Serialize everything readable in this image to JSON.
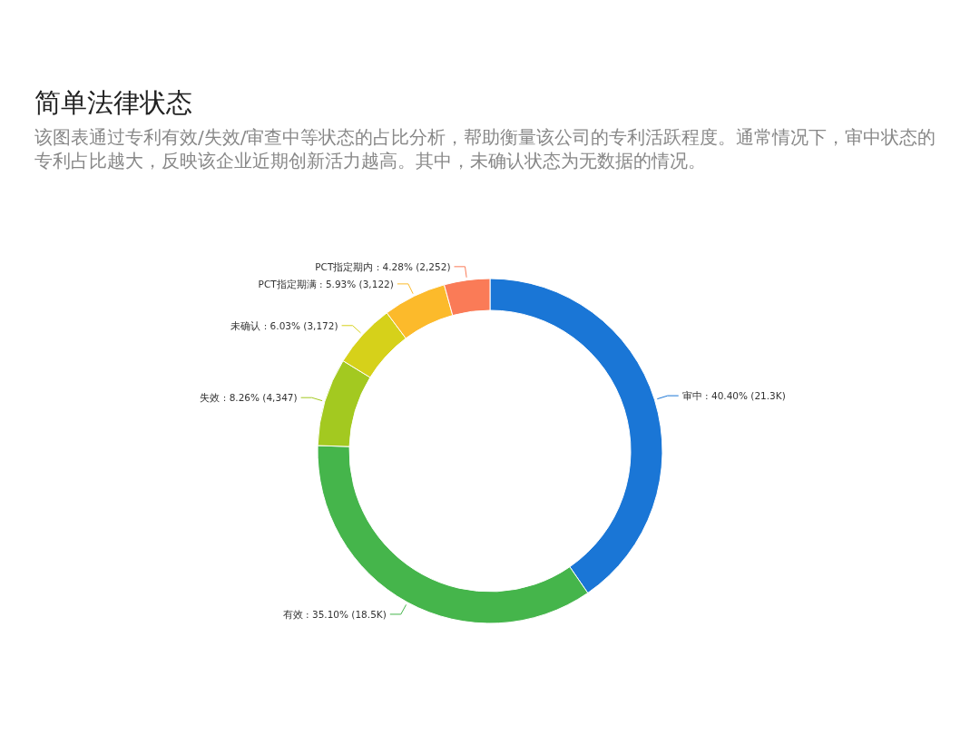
{
  "chart_data": {
    "type": "donut",
    "title": "简单法律状态",
    "subtitle": "该图表通过专利有效/失效/审查中等状态的占比分析，帮助衡量该公司的专利活跃程度。通常情况下，审中状态的专利占比越大，反映该企业近期创新活力越高。其中，未确认状态为无数据的情况。",
    "categories": [
      "审中",
      "有效",
      "失效",
      "未确认",
      "PCT指定期满",
      "PCT指定期内"
    ],
    "values": [
      40.4,
      35.1,
      8.26,
      6.03,
      5.93,
      4.28
    ],
    "value_labels": [
      "40.40% (21.3K)",
      "35.10% (18.5K)",
      "8.26% (4,347)",
      "6.03% (3,172)",
      "5.93% (3,122)",
      "4.28% (2,252)"
    ],
    "colors": [
      "#1a76d6",
      "#45b54b",
      "#a3c920",
      "#d6d11a",
      "#fcba2b",
      "#fa7b57"
    ]
  }
}
